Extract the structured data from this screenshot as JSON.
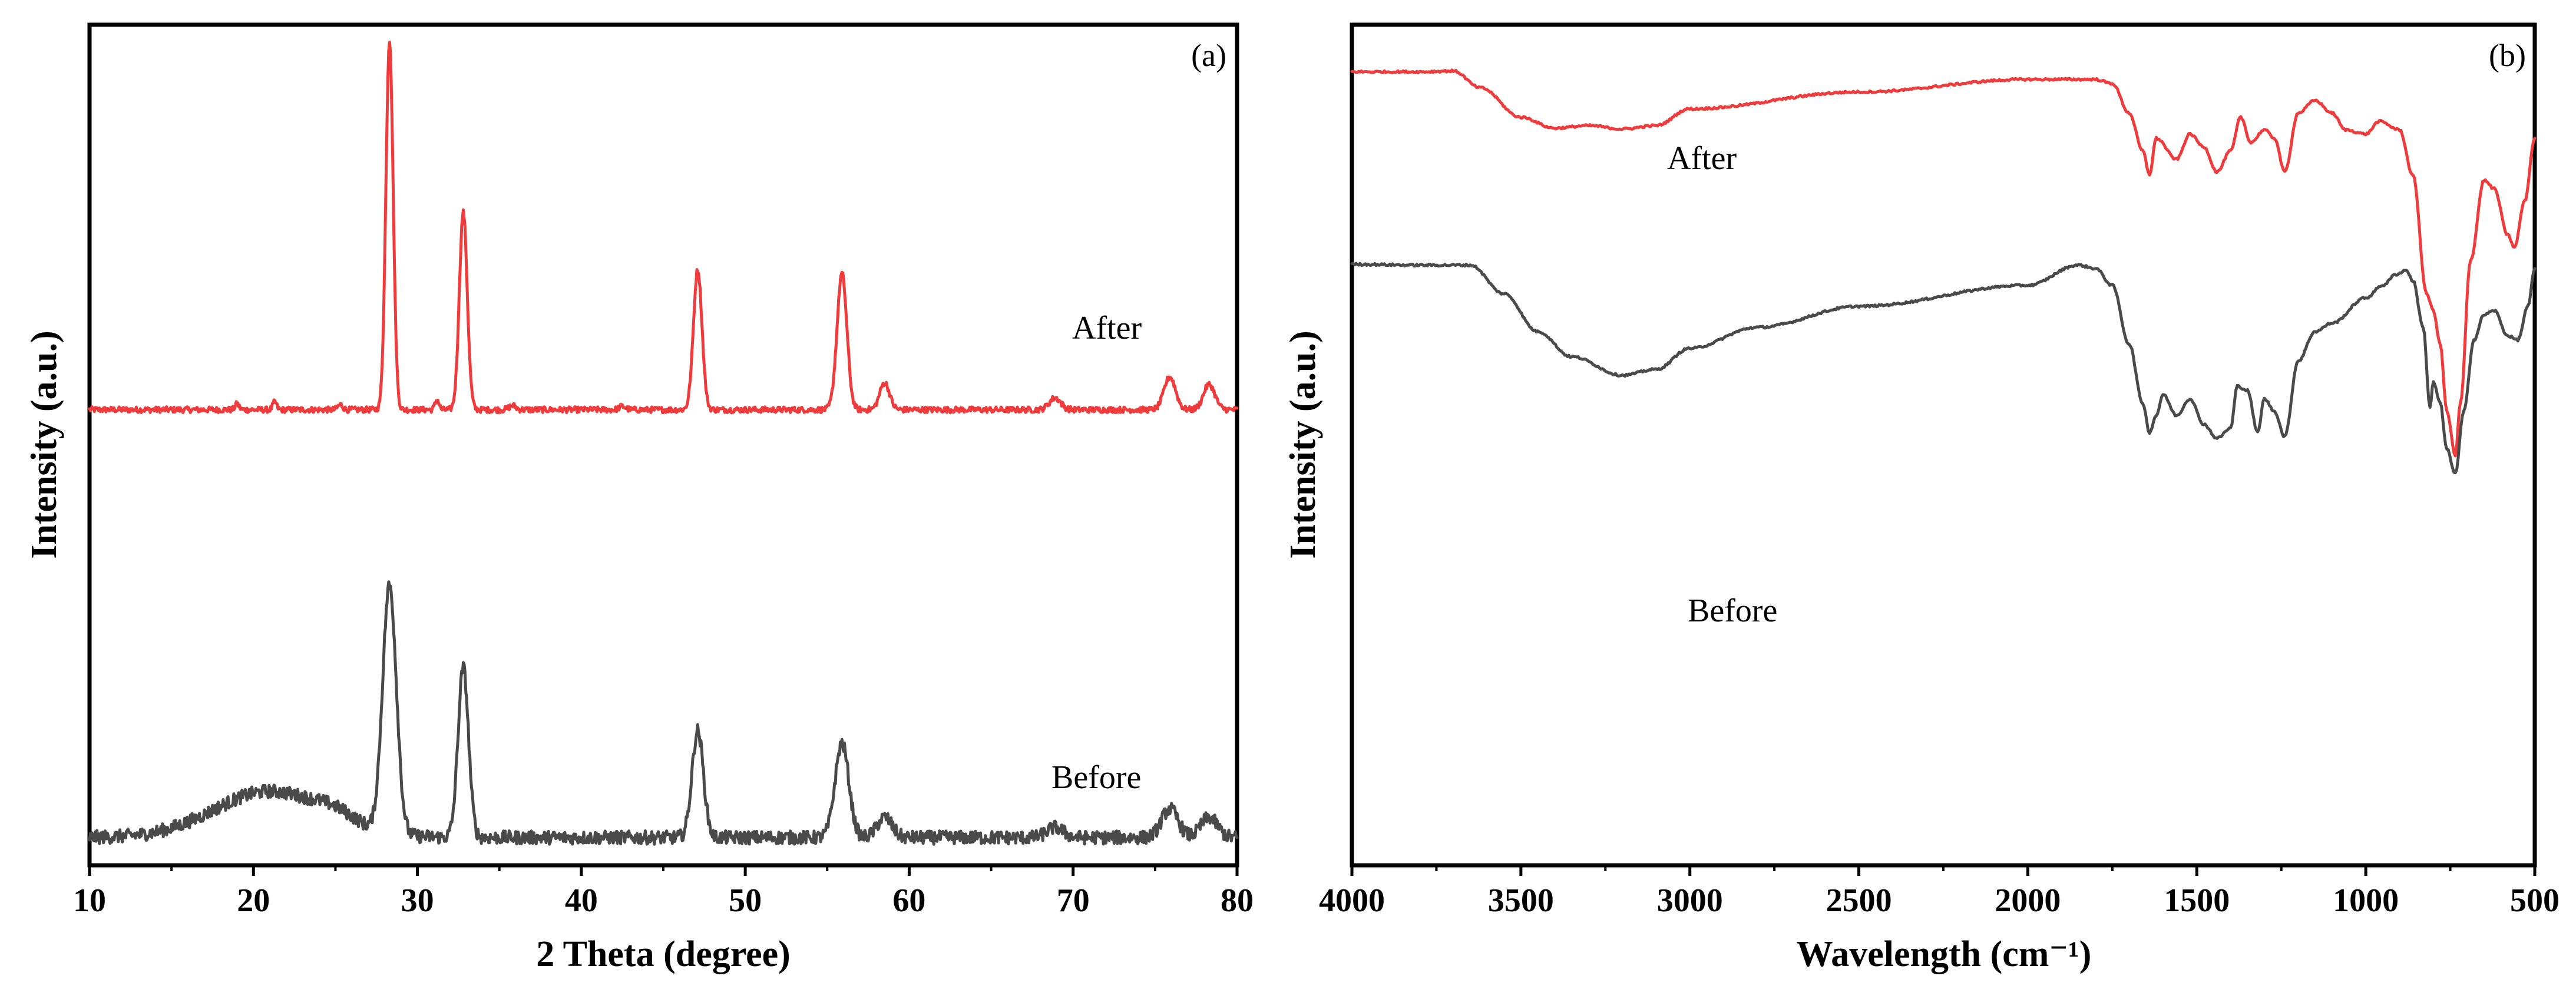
{
  "colors": {
    "after": "#ef3b3b",
    "before": "#4a4a4a"
  },
  "chart_data": [
    {
      "type": "line",
      "panel": "(a)",
      "xlabel": "2 Theta (degree)",
      "ylabel": "Intensity (a.u.)",
      "xlim": [
        10,
        80
      ],
      "ylim": [
        0,
        100
      ],
      "xticks": [
        10,
        20,
        30,
        40,
        50,
        60,
        70,
        80
      ],
      "grid": false,
      "series": [
        {
          "name": "After",
          "color": "#ef3b3b",
          "baseline": 54.2,
          "noise": 0.35,
          "peaks": [
            [
              28.3,
              44,
              0.22
            ],
            [
              32.8,
              23.5,
              0.24
            ],
            [
              47.1,
              16.7,
              0.26
            ],
            [
              55.9,
              16.2,
              0.3
            ],
            [
              58.5,
              3.2,
              0.3
            ],
            [
              68.9,
              1.4,
              0.35
            ],
            [
              75.9,
              3.9,
              0.35
            ],
            [
              78.3,
              3.0,
              0.35
            ],
            [
              19.0,
              0.7,
              0.12
            ],
            [
              21.3,
              0.9,
              0.12
            ],
            [
              25.3,
              0.6,
              0.15
            ],
            [
              31.2,
              1.2,
              0.12
            ],
            [
              35.8,
              0.5,
              0.2
            ],
            [
              42.5,
              0.4,
              0.2
            ]
          ]
        },
        {
          "name": "Before",
          "color": "#4a4a4a",
          "baseline": 3.3,
          "noise": 0.8,
          "peaks": [
            [
              21.0,
              5.5,
              3.4
            ],
            [
              28.3,
              29.5,
              0.42
            ],
            [
              32.8,
              20.2,
              0.32
            ],
            [
              47.1,
              12.7,
              0.35
            ],
            [
              55.9,
              11.2,
              0.42
            ],
            [
              58.5,
              2.4,
              0.45
            ],
            [
              68.9,
              1.2,
              0.5
            ],
            [
              75.9,
              3.4,
              0.5
            ],
            [
              78.3,
              2.4,
              0.5
            ],
            [
              25.0,
              1.0,
              1.2
            ]
          ]
        }
      ]
    },
    {
      "type": "line",
      "panel": "(b)",
      "xlabel": "Wavelength (cm⁻¹)",
      "ylabel": "Intensity (a.u.)",
      "xlim": [
        4000,
        500
      ],
      "ylim": [
        0,
        100
      ],
      "xticks": [
        4000,
        3500,
        3000,
        2500,
        2000,
        1500,
        1000,
        500
      ],
      "grid": false,
      "series": [
        {
          "name": "After",
          "color": "#ef3b3b",
          "noise": 0.25,
          "points": [
            [
              4000,
              94.4
            ],
            [
              3800,
              94.4
            ],
            [
              3700,
              94.5
            ],
            [
              3620,
              92.5
            ],
            [
              3500,
              89.0
            ],
            [
              3400,
              87.7
            ],
            [
              3300,
              88.0
            ],
            [
              3200,
              87.6
            ],
            [
              3100,
              88.0
            ],
            [
              3000,
              90.0
            ],
            [
              2500,
              92.0
            ],
            [
              2000,
              93.5
            ],
            [
              1800,
              93.5
            ],
            [
              1750,
              93.0
            ],
            [
              1700,
              89.5
            ],
            [
              1660,
              85.0
            ],
            [
              1640,
              82.2
            ],
            [
              1620,
              86.5
            ],
            [
              1560,
              84.0
            ],
            [
              1520,
              87.0
            ],
            [
              1480,
              85.5
            ],
            [
              1440,
              82.5
            ],
            [
              1400,
              85.0
            ],
            [
              1370,
              89.0
            ],
            [
              1340,
              86.0
            ],
            [
              1300,
              87.5
            ],
            [
              1270,
              86.5
            ],
            [
              1240,
              82.5
            ],
            [
              1200,
              89.5
            ],
            [
              1150,
              91.0
            ],
            [
              1100,
              89.5
            ],
            [
              1060,
              87.5
            ],
            [
              1000,
              87.0
            ],
            [
              960,
              88.5
            ],
            [
              900,
              87.5
            ],
            [
              860,
              82.0
            ],
            [
              820,
              68.0
            ],
            [
              800,
              66.0
            ],
            [
              780,
              62.0
            ],
            [
              760,
              54.0
            ],
            [
              735,
              48.7
            ],
            [
              720,
              55.0
            ],
            [
              690,
              72.0
            ],
            [
              650,
              81.5
            ],
            [
              620,
              80.5
            ],
            [
              580,
              75.0
            ],
            [
              560,
              73.5
            ],
            [
              530,
              79.0
            ],
            [
              500,
              86.5
            ]
          ]
        },
        {
          "name": "Before",
          "color": "#4a4a4a",
          "noise": 0.25,
          "points": [
            [
              4000,
              71.5
            ],
            [
              3800,
              71.4
            ],
            [
              3650,
              71.4
            ],
            [
              3550,
              68.0
            ],
            [
              3450,
              63.5
            ],
            [
              3350,
              60.5
            ],
            [
              3200,
              58.3
            ],
            [
              3100,
              59.0
            ],
            [
              3000,
              61.5
            ],
            [
              2800,
              64.0
            ],
            [
              2500,
              66.5
            ],
            [
              2000,
              69.0
            ],
            [
              1850,
              71.4
            ],
            [
              1800,
              71.0
            ],
            [
              1750,
              69.0
            ],
            [
              1700,
              62.0
            ],
            [
              1660,
              55.0
            ],
            [
              1640,
              51.5
            ],
            [
              1620,
              53.5
            ],
            [
              1600,
              56.0
            ],
            [
              1560,
              53.5
            ],
            [
              1520,
              55.5
            ],
            [
              1480,
              52.5
            ],
            [
              1440,
              50.8
            ],
            [
              1400,
              52.0
            ],
            [
              1380,
              57.0
            ],
            [
              1350,
              56.5
            ],
            [
              1320,
              51.5
            ],
            [
              1300,
              55.5
            ],
            [
              1270,
              54.0
            ],
            [
              1240,
              51.0
            ],
            [
              1200,
              60.0
            ],
            [
              1150,
              63.5
            ],
            [
              1100,
              64.5
            ],
            [
              1000,
              67.5
            ],
            [
              950,
              69.0
            ],
            [
              910,
              70.3
            ],
            [
              880,
              70.8
            ],
            [
              860,
              69.5
            ],
            [
              830,
              64.0
            ],
            [
              810,
              54.5
            ],
            [
              800,
              57.5
            ],
            [
              780,
              55.0
            ],
            [
              760,
              49.5
            ],
            [
              735,
              46.6
            ],
            [
              710,
              54.0
            ],
            [
              680,
              62.5
            ],
            [
              650,
              65.5
            ],
            [
              620,
              66.0
            ],
            [
              580,
              63.0
            ],
            [
              550,
              62.5
            ],
            [
              520,
              66.5
            ],
            [
              500,
              71.0
            ]
          ]
        }
      ]
    }
  ]
}
